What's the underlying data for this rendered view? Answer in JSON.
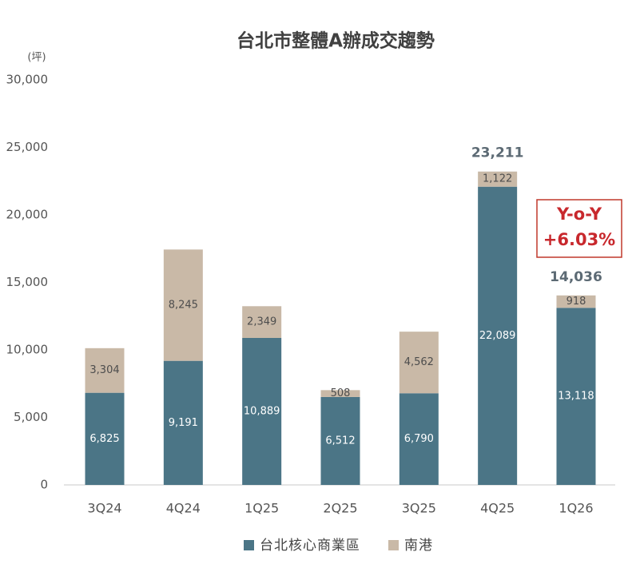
{
  "chart_data": {
    "type": "bar",
    "stacked": true,
    "title": "台北市整體A辦成交趨勢",
    "ylabel": "(坪)",
    "xlabel": "",
    "ylim": [
      0,
      30000
    ],
    "yticks": [
      0,
      5000,
      10000,
      15000,
      20000,
      25000,
      30000
    ],
    "grid": false,
    "legend_position": "bottom",
    "categories": [
      "3Q24",
      "4Q24",
      "1Q25",
      "2Q25",
      "3Q25",
      "4Q25",
      "1Q26"
    ],
    "series": [
      {
        "name": "台北核心商業區",
        "color": "#4b7586",
        "label_color": "#ffffff",
        "values": [
          6825,
          9191,
          10889,
          6512,
          6790,
          22089,
          13118
        ]
      },
      {
        "name": "南港",
        "color": "#c9b9a7",
        "label_color": "#4d4d4d",
        "values": [
          3304,
          8245,
          2349,
          508,
          4562,
          1122,
          918
        ]
      }
    ],
    "total_labels": [
      {
        "category": "4Q25",
        "text": "23,211"
      },
      {
        "category": "1Q26",
        "text": "14,036"
      }
    ],
    "callout": {
      "lines": [
        "Y-o-Y",
        "+6.03%"
      ],
      "color": "#c8282d"
    }
  }
}
